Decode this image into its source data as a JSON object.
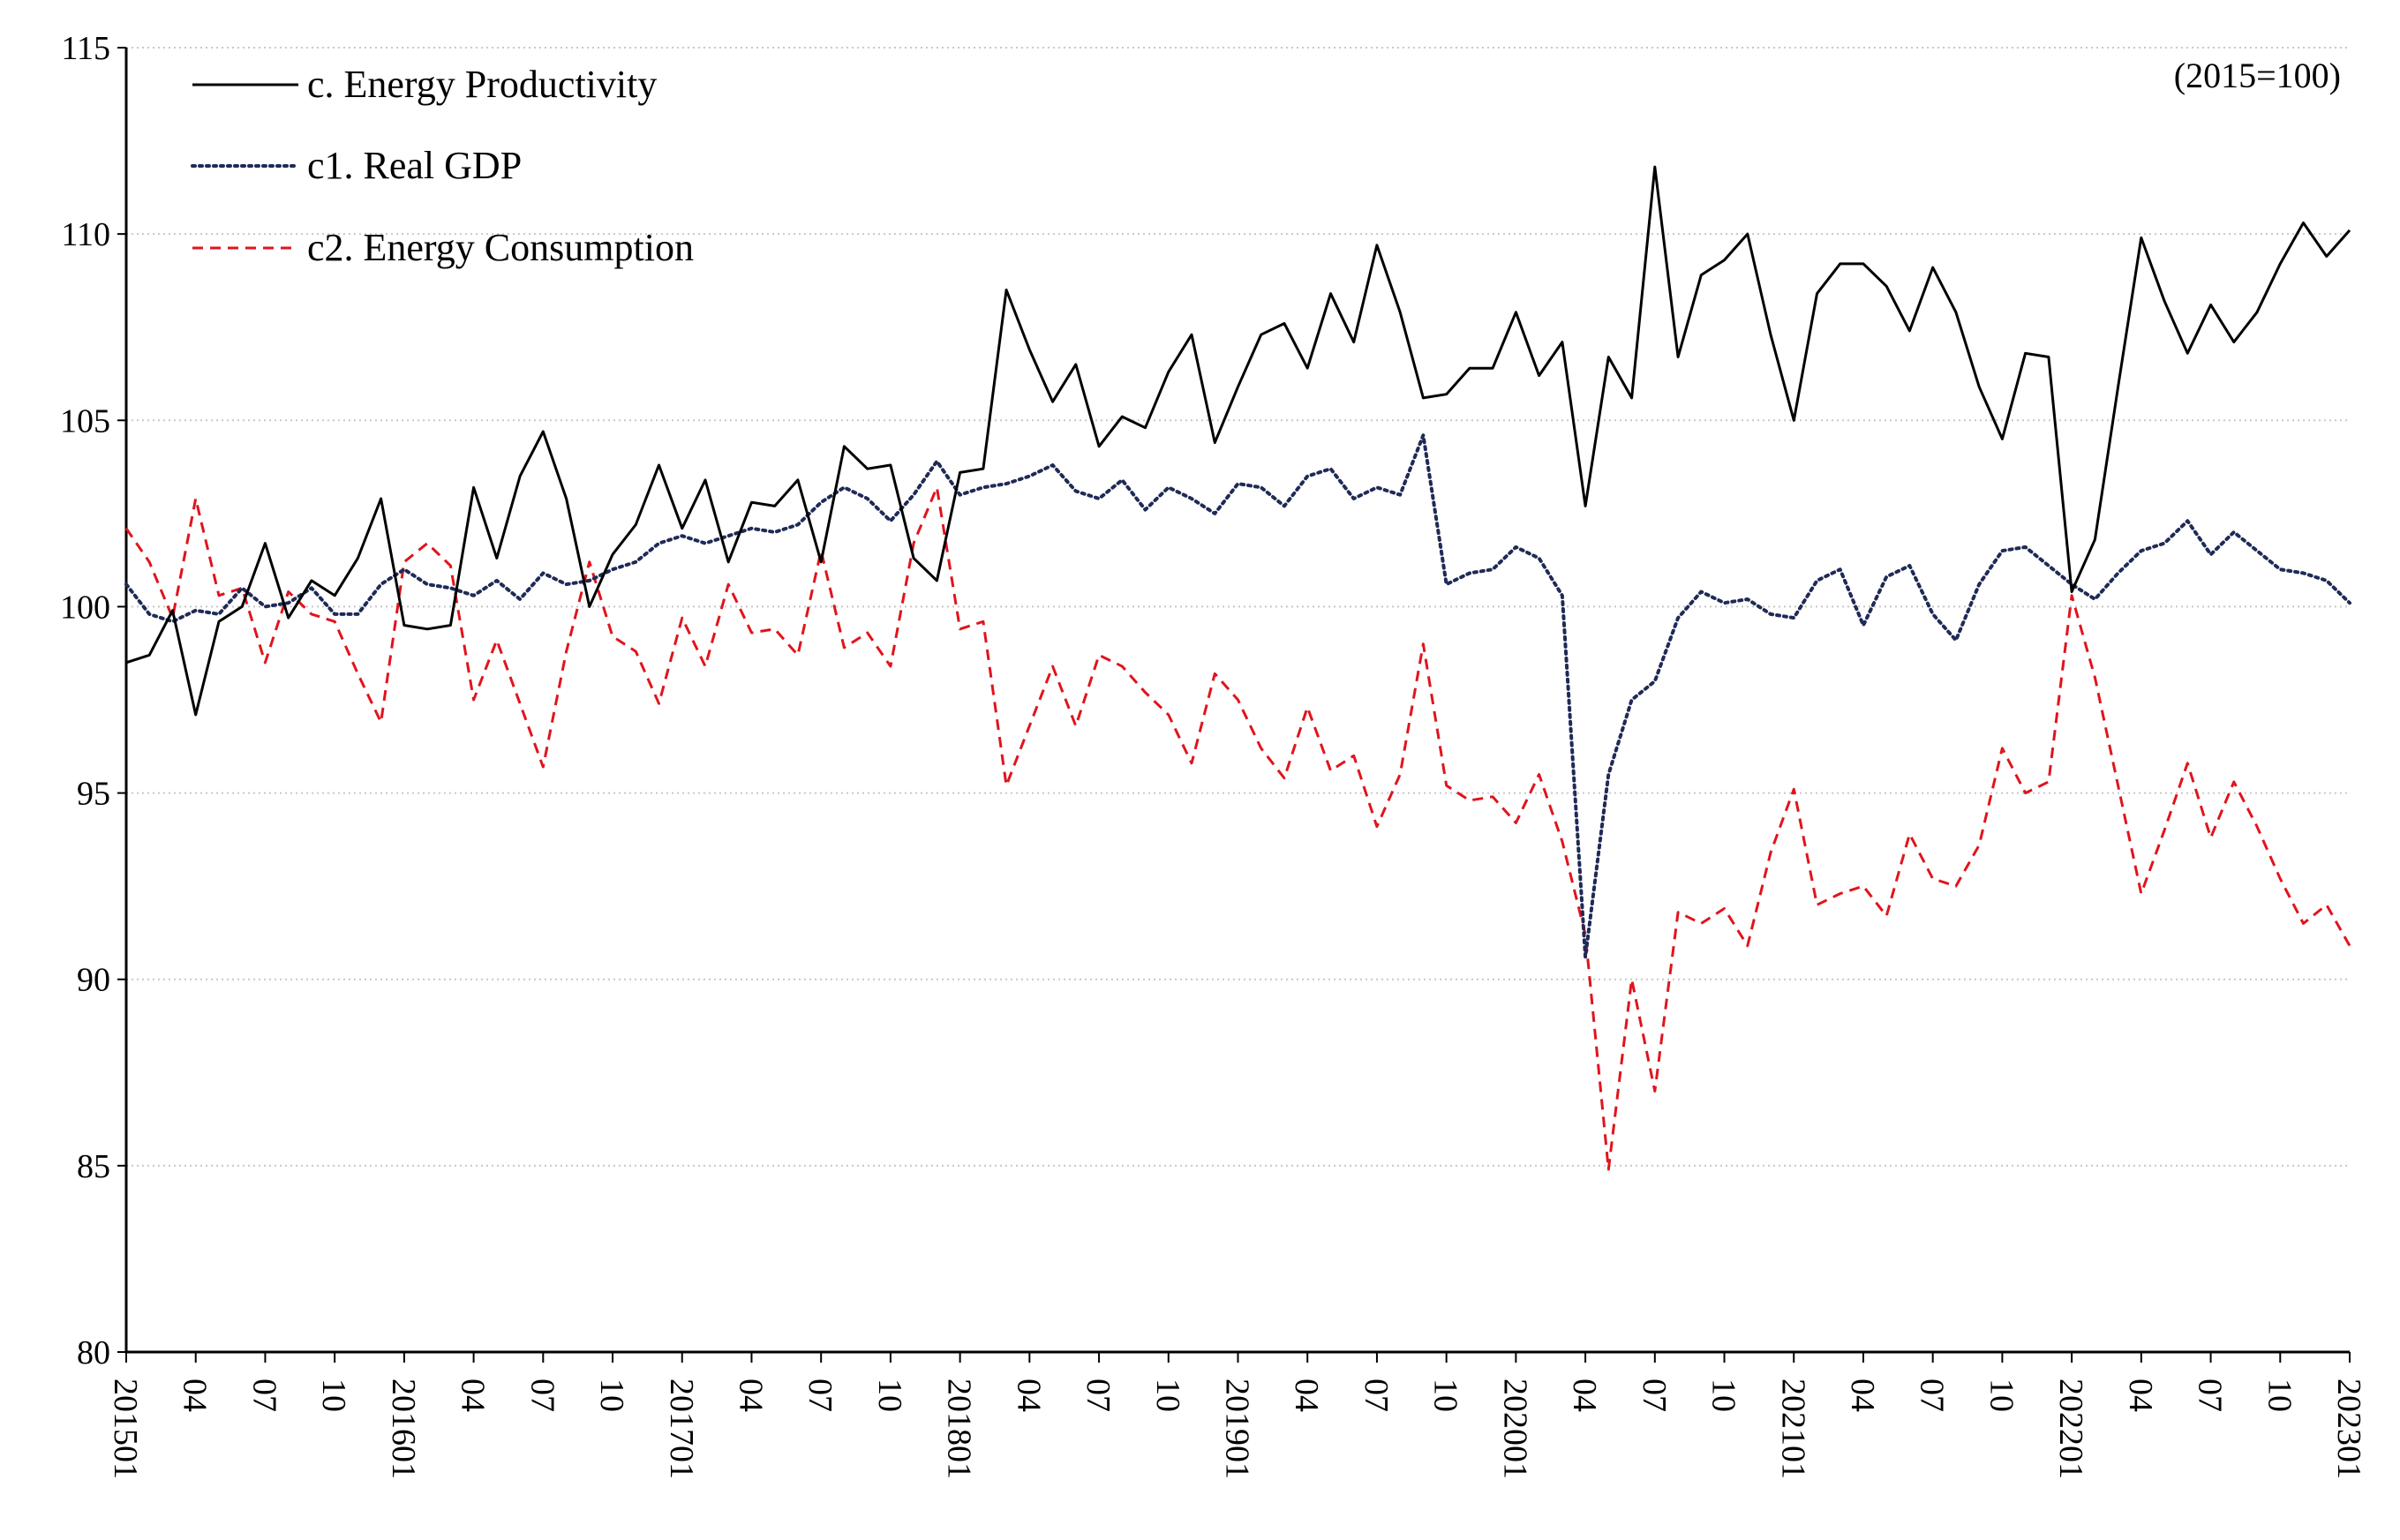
{
  "chart_data": {
    "type": "line",
    "title": "",
    "base_note": "(2015=100)",
    "xlabel": "",
    "ylabel": "",
    "ylim": [
      80,
      115
    ],
    "yticks": [
      "80",
      "85",
      "90",
      "95",
      "100",
      "105",
      "110",
      "115"
    ],
    "grid": "horizontal dotted",
    "legend_position": "top-left",
    "x": [
      "201501",
      "201502",
      "201503",
      "201504",
      "201505",
      "201506",
      "201507",
      "201508",
      "201509",
      "201510",
      "201511",
      "201512",
      "201601",
      "201602",
      "201603",
      "201604",
      "201605",
      "201606",
      "201607",
      "201608",
      "201609",
      "201610",
      "201611",
      "201612",
      "201701",
      "201702",
      "201703",
      "201704",
      "201705",
      "201706",
      "201707",
      "201708",
      "201709",
      "201710",
      "201711",
      "201712",
      "201801",
      "201802",
      "201803",
      "201804",
      "201805",
      "201806",
      "201807",
      "201808",
      "201809",
      "201810",
      "201811",
      "201812",
      "201901",
      "201902",
      "201903",
      "201904",
      "201905",
      "201906",
      "201907",
      "201908",
      "201909",
      "201910",
      "201911",
      "201912",
      "202001",
      "202002",
      "202003",
      "202004",
      "202005",
      "202006",
      "202007",
      "202008",
      "202009",
      "202010",
      "202011",
      "202012",
      "202101",
      "202102",
      "202103",
      "202104",
      "202105",
      "202106",
      "202107",
      "202108",
      "202109",
      "202110",
      "202111",
      "202112",
      "202201",
      "202202",
      "202203",
      "202204",
      "202205",
      "202206",
      "202207",
      "202208",
      "202209",
      "202210",
      "202211",
      "202212",
      "202301"
    ],
    "xtick_labels": [
      "201501",
      "04",
      "07",
      "10",
      "201601",
      "04",
      "07",
      "10",
      "201701",
      "04",
      "07",
      "10",
      "201801",
      "04",
      "07",
      "10",
      "201901",
      "04",
      "07",
      "10",
      "202001",
      "04",
      "07",
      "10",
      "202101",
      "04",
      "07",
      "10",
      "202201",
      "04",
      "07",
      "10",
      "202301"
    ],
    "series": [
      {
        "name": "c. Energy Productivity",
        "color": "#000000",
        "style": "solid",
        "values": [
          98.5,
          98.7,
          99.9,
          97.1,
          99.6,
          100.0,
          101.7,
          99.7,
          100.7,
          100.3,
          101.3,
          102.9,
          99.5,
          99.4,
          99.5,
          103.2,
          101.3,
          103.5,
          104.7,
          102.9,
          100.0,
          101.4,
          102.2,
          103.8,
          102.1,
          103.4,
          101.2,
          102.8,
          102.7,
          103.4,
          101.2,
          104.3,
          103.7,
          103.8,
          101.3,
          100.7,
          103.6,
          103.7,
          108.5,
          106.9,
          105.5,
          106.5,
          104.3,
          105.1,
          104.8,
          106.3,
          107.3,
          104.4,
          105.9,
          107.3,
          107.6,
          106.4,
          108.4,
          107.1,
          109.7,
          107.9,
          105.6,
          105.7,
          106.4,
          106.4,
          107.9,
          106.2,
          107.1,
          102.7,
          106.7,
          105.6,
          111.8,
          106.7,
          108.9,
          109.3,
          110.0,
          107.3,
          105.0,
          108.4,
          109.2,
          109.2,
          108.6,
          107.4,
          109.1,
          107.9,
          105.9,
          104.5,
          106.8,
          106.7,
          100.4,
          101.8,
          105.9,
          109.9,
          108.2,
          106.8,
          108.1,
          107.1,
          107.9,
          109.2,
          110.3,
          109.4,
          110.1
        ]
      },
      {
        "name": "c1. Real GDP",
        "color": "#1f2a56",
        "style": "dotted",
        "values": [
          100.6,
          99.8,
          99.6,
          99.9,
          99.8,
          100.5,
          100.0,
          100.1,
          100.5,
          99.8,
          99.8,
          100.6,
          101.0,
          100.6,
          100.5,
          100.3,
          100.7,
          100.2,
          100.9,
          100.6,
          100.7,
          101.0,
          101.2,
          101.7,
          101.9,
          101.7,
          101.9,
          102.1,
          102.0,
          102.2,
          102.8,
          103.2,
          102.9,
          102.3,
          103.0,
          103.9,
          103.0,
          103.2,
          103.3,
          103.5,
          103.8,
          103.1,
          102.9,
          103.4,
          102.6,
          103.2,
          102.9,
          102.5,
          103.3,
          103.2,
          102.7,
          103.5,
          103.7,
          102.9,
          103.2,
          103.0,
          104.6,
          100.6,
          100.9,
          101.0,
          101.6,
          101.3,
          100.3,
          90.6,
          95.5,
          97.5,
          98.0,
          99.7,
          100.4,
          100.1,
          100.2,
          99.8,
          99.7,
          100.7,
          101.0,
          99.5,
          100.8,
          101.1,
          99.8,
          99.1,
          100.6,
          101.5,
          101.6,
          101.1,
          100.6,
          100.2,
          100.9,
          101.5,
          101.7,
          102.3,
          101.4,
          102.0,
          101.5,
          101.0,
          100.9,
          100.7,
          100.1
        ]
      },
      {
        "name": "c2. Energy Consumption",
        "color": "#e0141c",
        "style": "dashed",
        "values": [
          102.1,
          101.2,
          99.7,
          102.9,
          100.3,
          100.5,
          98.5,
          100.4,
          99.8,
          99.6,
          98.2,
          96.9,
          101.2,
          101.7,
          101.1,
          97.5,
          99.1,
          97.4,
          95.7,
          98.8,
          101.2,
          99.2,
          98.8,
          97.4,
          99.7,
          98.4,
          100.6,
          99.3,
          99.4,
          98.7,
          101.5,
          98.9,
          99.3,
          98.4,
          101.7,
          103.2,
          99.4,
          99.6,
          95.2,
          96.8,
          98.4,
          96.8,
          98.7,
          98.4,
          97.7,
          97.1,
          95.8,
          98.2,
          97.5,
          96.2,
          95.4,
          97.3,
          95.6,
          96.0,
          94.1,
          95.5,
          99.0,
          95.2,
          94.8,
          94.9,
          94.2,
          95.5,
          93.7,
          91.2,
          84.9,
          90.0,
          87.0,
          91.8,
          91.5,
          91.9,
          90.9,
          93.4,
          95.1,
          92.0,
          92.3,
          92.5,
          91.7,
          93.9,
          92.7,
          92.5,
          93.6,
          96.2,
          95.0,
          95.3,
          100.3,
          98.1,
          95.2,
          92.3,
          94.0,
          95.8,
          93.8,
          95.3,
          94.1,
          92.7,
          91.5,
          92.0,
          90.9
        ]
      }
    ]
  }
}
